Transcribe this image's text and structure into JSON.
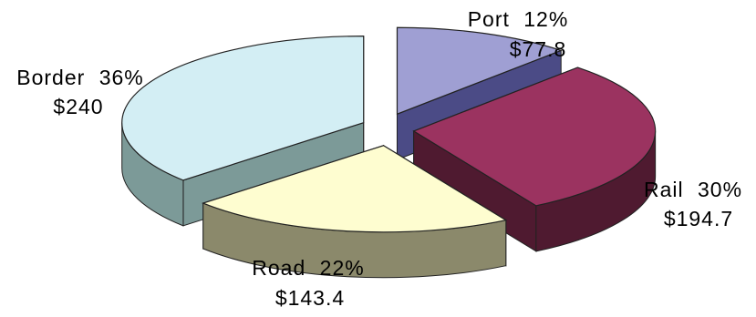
{
  "chart_data": {
    "type": "pie",
    "style": "3d-exploded",
    "title": "",
    "legend": "none",
    "slices": [
      {
        "name": "Port",
        "percent_label": "12%",
        "value": 77.8,
        "value_label": "$77.8",
        "color_top": "#9f9fd3",
        "color_side": "#4b4b86"
      },
      {
        "name": "Rail",
        "percent_label": "30%",
        "value": 194.7,
        "value_label": "$194.7",
        "color_top": "#9b3360",
        "color_side": "#4f1a30"
      },
      {
        "name": "Road",
        "percent_label": "22%",
        "value": 143.4,
        "value_label": "$143.4",
        "color_top": "#fefdd0",
        "color_side": "#8b896b"
      },
      {
        "name": "Border",
        "percent_label": "36%",
        "value": 240,
        "value_label": "$240",
        "color_top": "#d3eef4",
        "color_side": "#7c9a98"
      }
    ]
  }
}
